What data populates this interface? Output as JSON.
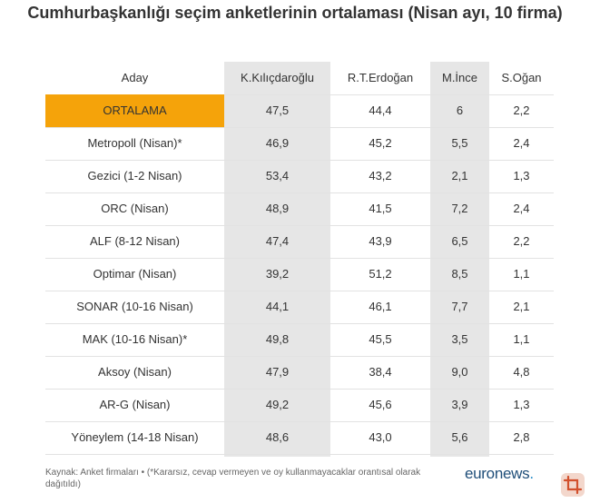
{
  "title": "Cumhurbaşkanlığı seçim anketlerinin ortalaması (Nisan ayı, 10 firma)",
  "chart_data": {
    "type": "table",
    "columns": [
      "Aday",
      "K.Kılıçdaroğlu",
      "R.T.Erdoğan",
      "M.İnce",
      "S.Oğan"
    ],
    "rows": [
      {
        "label": "ORTALAMA",
        "values": [
          "47,5",
          "44,4",
          "6",
          "2,2"
        ],
        "highlight": true
      },
      {
        "label": "Metropoll (Nisan)*",
        "values": [
          "46,9",
          "45,2",
          "5,5",
          "2,4"
        ]
      },
      {
        "label": "Gezici (1-2 Nisan)",
        "values": [
          "53,4",
          "43,2",
          "2,1",
          "1,3"
        ]
      },
      {
        "label": "ORC (Nisan)",
        "values": [
          "48,9",
          "41,5",
          "7,2",
          "2,4"
        ]
      },
      {
        "label": "ALF (8-12 Nisan)",
        "values": [
          "47,4",
          "43,9",
          "6,5",
          "2,2"
        ]
      },
      {
        "label": "Optimar (Nisan)",
        "values": [
          "39,2",
          "51,2",
          "8,5",
          "1,1"
        ]
      },
      {
        "label": "SONAR (10-16 Nisan)",
        "values": [
          "44,1",
          "46,1",
          "7,7",
          "2,1"
        ]
      },
      {
        "label": "MAK (10-16 Nisan)*",
        "values": [
          "49,8",
          "45,5",
          "3,5",
          "1,1"
        ]
      },
      {
        "label": "Aksoy (Nisan)",
        "values": [
          "47,9",
          "38,4",
          "9,0",
          "4,8"
        ]
      },
      {
        "label": "AR-G (Nisan)",
        "values": [
          "49,2",
          "45,6",
          "3,9",
          "1,3"
        ]
      },
      {
        "label": "Yöneylem (14-18 Nisan)",
        "values": [
          "48,6",
          "43,0",
          "5,6",
          "2,8"
        ]
      }
    ],
    "highlight_color": "#f5a30a",
    "shaded_columns_color": "#e6e6e6"
  },
  "footer": "Kaynak: Anket firmaları • (*Kararsız, cevap vermeyen ve oy kullanmayacaklar orantısal olarak dağıtıldı)",
  "logo": {
    "text": "euronews",
    "dot": "."
  }
}
